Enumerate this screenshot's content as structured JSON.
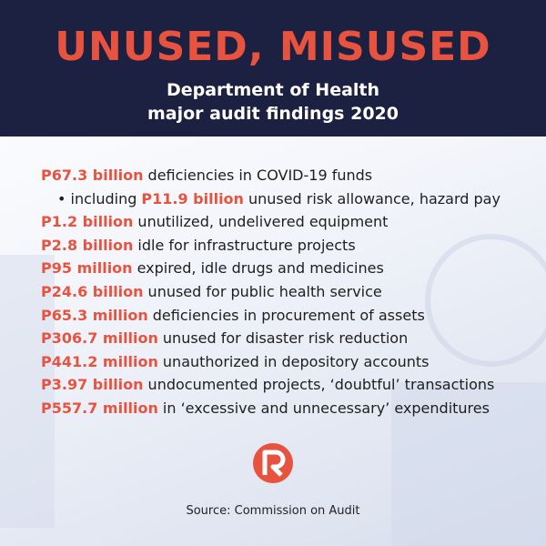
{
  "header": {
    "title": "UNUSED, MISUSED",
    "subtitle": [
      "Department of Health",
      "major audit findings 2020"
    ]
  },
  "items": [
    {
      "amount": "P67.3 billion",
      "text": "deficiencies in COVID-19 funds"
    },
    {
      "prefix": "• including",
      "amount": "P11.9 billion",
      "text": "unused risk allowance, hazard pay"
    },
    {
      "amount": "P1.2 billion",
      "text": "unutilized, undelivered equipment"
    },
    {
      "amount": "P2.8 billion",
      "text": "idle for infrastructure projects"
    },
    {
      "amount": "P95 million",
      "text": "expired, idle drugs and medicines"
    },
    {
      "amount": "P24.6 billion",
      "text": "unused for public health service"
    },
    {
      "amount": "P65.3 million",
      "text": "deficiencies in procurement of assets"
    },
    {
      "amount": "P306.7 million",
      "text": "unused for disaster risk reduction"
    },
    {
      "amount": "P441.2 million",
      "text": "unauthorized in depository accounts"
    },
    {
      "amount": "P3.97 billion",
      "text": "undocumented projects, ‘doubtful’ transactions"
    },
    {
      "amount": "P557.7 million",
      "text": "in ‘excessive and unnecessary’ expenditures"
    }
  ],
  "source": "Source: Commission on Audit"
}
